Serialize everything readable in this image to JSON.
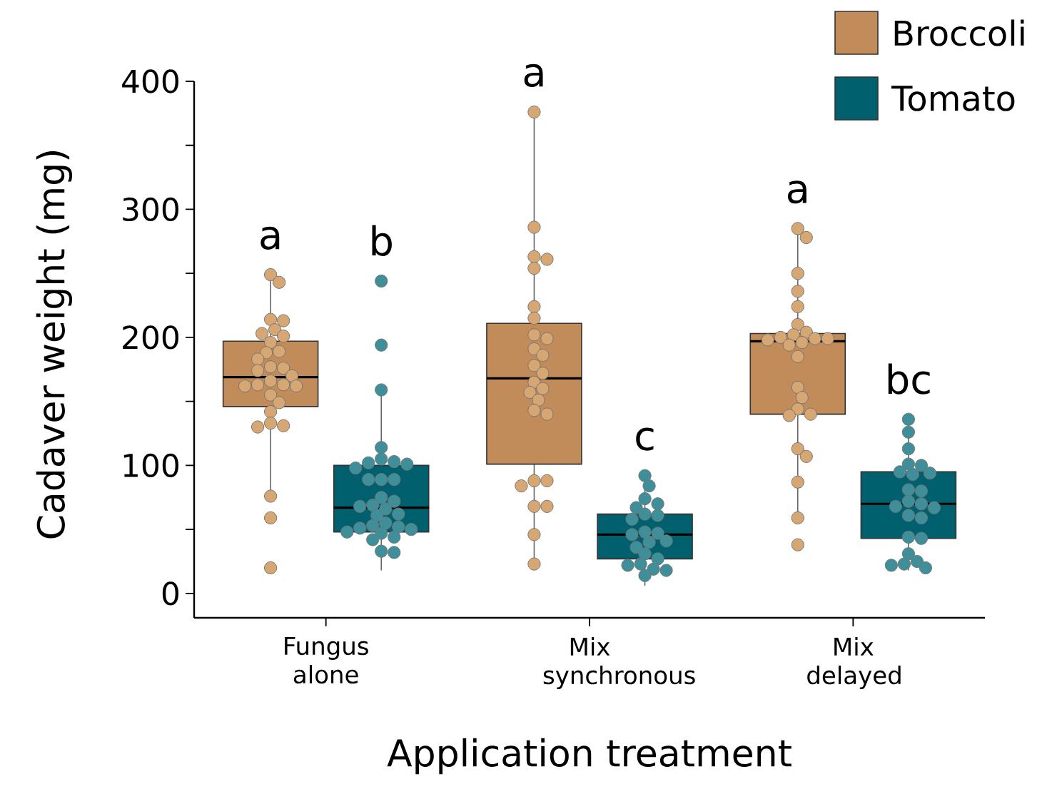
{
  "chart_data": {
    "type": "box",
    "xlabel": "Application treatment",
    "ylabel": "Cadaver weight (mg)",
    "categories": [
      "Fungus alone",
      "Mix synchronous",
      "Mix delayed"
    ],
    "ylim": [
      -19,
      400
    ],
    "yticks": [
      0,
      {
        "value": 50,
        "label": null
      },
      100,
      {
        "value": 150,
        "label": null
      },
      200,
      {
        "value": 250,
        "label": null
      },
      300,
      {
        "value": 350,
        "label": null
      },
      400
    ],
    "legend": "top right",
    "marker": "circle",
    "series": [
      {
        "name": "Broccoli",
        "color": "#c18c5a",
        "boxes": [
          {
            "low": 77,
            "q1": 146,
            "median": 169,
            "q3": 197,
            "high": 249
          },
          {
            "low": 23,
            "q1": 101,
            "median": 168,
            "q3": 211,
            "high": 376
          },
          {
            "low": 59,
            "q1": 140,
            "median": 197,
            "q3": 203,
            "high": 285
          }
        ]
      },
      {
        "name": "Tomato",
        "color": "#00606e",
        "boxes": [
          {
            "low": 18,
            "q1": 48,
            "median": 67,
            "q3": 100,
            "high": 158
          },
          {
            "low": 6,
            "q1": 27,
            "median": 46,
            "q3": 62,
            "high": 90
          },
          {
            "low": 18,
            "q1": 43,
            "median": 70,
            "q3": 95,
            "high": 136
          }
        ]
      },
      {
        "type": "scatter",
        "color": "#d6a673",
        "x": [
          "Fungus alone",
          "Fungus alone",
          "Fungus alone",
          "Fungus alone",
          "Fungus alone",
          "Fungus alone",
          "Fungus alone",
          "Fungus alone",
          "Fungus alone",
          "Fungus alone",
          "Fungus alone",
          "Fungus alone",
          "Fungus alone",
          "Fungus alone",
          "Fungus alone",
          "Fungus alone",
          "Fungus alone",
          "Fungus alone",
          "Fungus alone",
          "Fungus alone",
          "Fungus alone",
          "Fungus alone",
          "Fungus alone",
          "Fungus alone",
          "Fungus alone",
          "Fungus alone",
          "Fungus alone",
          "Fungus alone",
          "Fungus alone",
          "Mix synchronous",
          "Mix synchronous",
          "Mix synchronous",
          "Mix synchronous",
          "Mix synchronous",
          "Mix synchronous",
          "Mix synchronous",
          "Mix synchronous",
          "Mix synchronous",
          "Mix synchronous",
          "Mix synchronous",
          "Mix synchronous",
          "Mix synchronous",
          "Mix synchronous",
          "Mix synchronous",
          "Mix synchronous",
          "Mix synchronous",
          "Mix synchronous",
          "Mix synchronous",
          "Mix synchronous",
          "Mix synchronous",
          "Mix synchronous",
          "Mix synchronous",
          "Mix synchronous",
          "Mix synchronous",
          "Mix synchronous",
          "Mix delayed",
          "Mix delayed",
          "Mix delayed",
          "Mix delayed",
          "Mix delayed",
          "Mix delayed",
          "Mix delayed",
          "Mix delayed",
          "Mix delayed",
          "Mix delayed",
          "Mix delayed",
          "Mix delayed",
          "Mix delayed",
          "Mix delayed",
          "Mix delayed",
          "Mix delayed",
          "Mix delayed",
          "Mix delayed",
          "Mix delayed",
          "Mix delayed",
          "Mix delayed",
          "Mix delayed",
          "Mix delayed",
          "Mix delayed",
          "Mix delayed"
        ],
        "values": [
          249,
          243,
          214,
          213,
          206,
          203,
          201,
          196,
          189,
          188,
          183,
          177,
          176,
          174,
          170,
          166,
          163,
          163,
          162,
          155,
          149,
          142,
          133,
          131,
          130,
          76,
          59,
          20,
          162,
          376,
          286,
          263,
          261,
          254,
          224,
          215,
          202,
          199,
          191,
          186,
          178,
          172,
          165,
          160,
          157,
          151,
          143,
          140,
          88,
          88,
          84,
          68,
          68,
          46,
          23,
          285,
          278,
          250,
          236,
          224,
          210,
          204,
          202,
          200,
          199,
          199,
          198,
          196,
          194,
          185,
          161,
          153,
          144,
          140,
          139,
          113,
          107,
          87,
          59,
          38
        ]
      },
      {
        "type": "scatter",
        "color": "#3f8f9a",
        "x": [
          "Fungus alone",
          "Fungus alone",
          "Fungus alone",
          "Fungus alone",
          "Fungus alone",
          "Fungus alone",
          "Fungus alone",
          "Fungus alone",
          "Fungus alone",
          "Fungus alone",
          "Fungus alone",
          "Fungus alone",
          "Fungus alone",
          "Fungus alone",
          "Fungus alone",
          "Fungus alone",
          "Fungus alone",
          "Fungus alone",
          "Fungus alone",
          "Fungus alone",
          "Fungus alone",
          "Fungus alone",
          "Fungus alone",
          "Fungus alone",
          "Fungus alone",
          "Fungus alone",
          "Fungus alone",
          "Fungus alone",
          "Fungus alone",
          "Fungus alone",
          "Mix synchronous",
          "Mix synchronous",
          "Mix synchronous",
          "Mix synchronous",
          "Mix synchronous",
          "Mix synchronous",
          "Mix synchronous",
          "Mix synchronous",
          "Mix synchronous",
          "Mix synchronous",
          "Mix synchronous",
          "Mix synchronous",
          "Mix synchronous",
          "Mix synchronous",
          "Mix synchronous",
          "Mix synchronous",
          "Mix synchronous",
          "Mix synchronous",
          "Mix synchronous",
          "Mix synchronous",
          "Mix synchronous",
          "Mix delayed",
          "Mix delayed",
          "Mix delayed",
          "Mix delayed",
          "Mix delayed",
          "Mix delayed",
          "Mix delayed",
          "Mix delayed",
          "Mix delayed",
          "Mix delayed",
          "Mix delayed",
          "Mix delayed",
          "Mix delayed",
          "Mix delayed",
          "Mix delayed",
          "Mix delayed",
          "Mix delayed",
          "Mix delayed",
          "Mix delayed",
          "Mix delayed",
          "Mix delayed",
          "Mix delayed",
          "Mix delayed"
        ],
        "values": [
          244,
          194,
          159,
          114,
          105,
          103,
          102,
          101,
          98,
          89,
          89,
          89,
          75,
          72,
          69,
          68,
          66,
          62,
          61,
          55,
          53,
          52,
          51,
          50,
          48,
          47,
          44,
          42,
          33,
          32,
          92,
          84,
          74,
          70,
          67,
          62,
          61,
          58,
          48,
          47,
          46,
          41,
          40,
          36,
          31,
          27,
          23,
          22,
          19,
          18,
          14,
          136,
          126,
          113,
          101,
          100,
          95,
          94,
          93,
          81,
          80,
          72,
          70,
          68,
          67,
          61,
          59,
          44,
          43,
          31,
          25,
          23,
          22,
          20
        ]
      }
    ],
    "annotations": [
      "a",
      "b",
      "a",
      "c",
      "a",
      "bc"
    ]
  }
}
